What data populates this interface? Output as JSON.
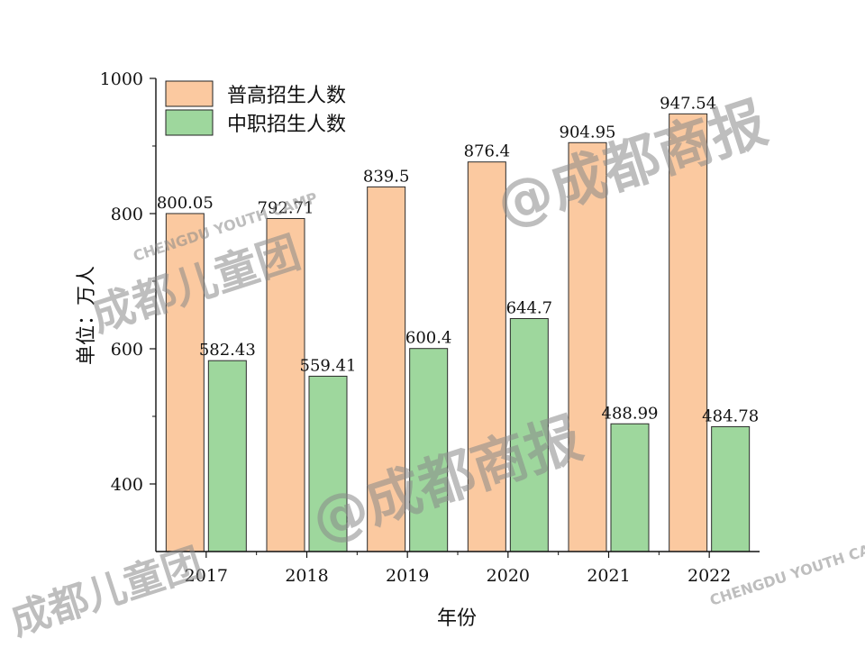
{
  "chart_data": {
    "type": "bar",
    "categories": [
      "2017",
      "2018",
      "2019",
      "2020",
      "2021",
      "2022"
    ],
    "series": [
      {
        "name": "普高招生人数",
        "values": [
          800.05,
          792.71,
          839.5,
          876.4,
          904.95,
          947.54
        ],
        "labels": [
          "800.05",
          "792.71",
          "839.5",
          "876.4",
          "904.95",
          "947.54"
        ],
        "color": "#fbc9a0"
      },
      {
        "name": "中职招生人数",
        "values": [
          582.43,
          559.41,
          600.4,
          644.7,
          488.99,
          484.78
        ],
        "labels": [
          "582.43",
          "559.41",
          "600.4",
          "644.7",
          "488.99",
          "484.78"
        ],
        "color": "#9ed79d"
      }
    ],
    "xlabel": "年份",
    "ylabel": "单位：万人",
    "ylim": [
      300,
      1000
    ],
    "yticks": [
      400,
      600,
      800,
      1000
    ],
    "legend_position": "top-left",
    "grid": false
  },
  "watermarks": {
    "main": "@成都商报",
    "group": "成都儿童团",
    "camp": "CHENGDU YOUTH CAMP"
  }
}
